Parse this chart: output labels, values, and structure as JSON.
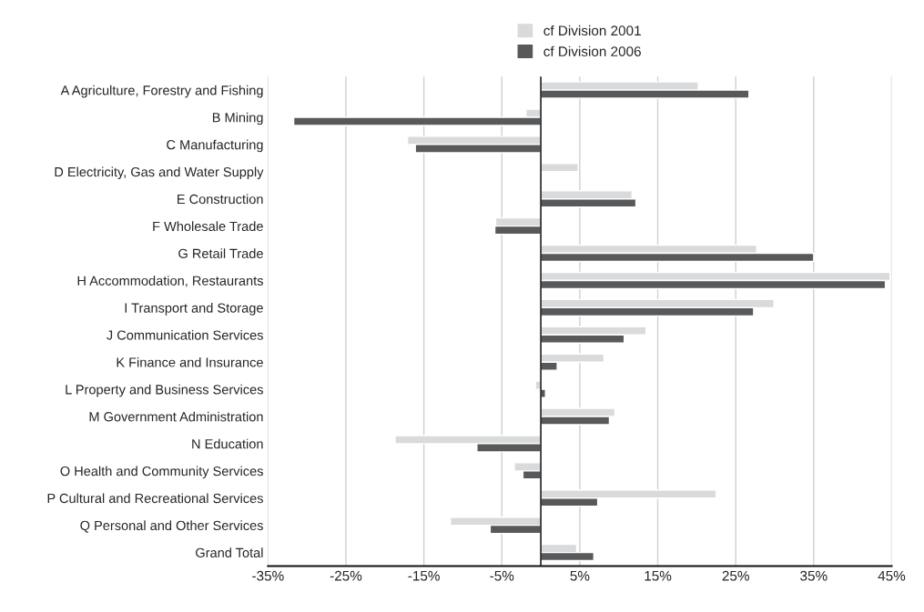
{
  "chart_data": {
    "type": "bar",
    "orientation": "horizontal",
    "categories": [
      "A Agriculture, Forestry and Fishing",
      "B Mining",
      "C Manufacturing",
      "D Electricity, Gas and Water Supply",
      "E Construction",
      "F Wholesale Trade",
      "G Retail Trade",
      "H Accommodation, Restaurants",
      "I Transport and Storage",
      "J Communication Services",
      "K Finance and Insurance",
      "L Property and Business Services",
      "M Government Administration",
      "N Education",
      "O Health and Community Services",
      "P Cultural and Recreational Services",
      "Q Personal and Other Services",
      "Grand Total"
    ],
    "series": [
      {
        "name": "cf Division 2001",
        "color": "#d9dadb",
        "values": [
          20.2,
          -1.9,
          -17.1,
          4.8,
          11.7,
          -5.8,
          27.7,
          44.8,
          29.9,
          13.5,
          8.1,
          -0.7,
          9.5,
          -18.7,
          -3.4,
          22.5,
          -11.6,
          4.6
        ]
      },
      {
        "name": "cf Division 2006",
        "color": "#58595b",
        "values": [
          26.7,
          -31.7,
          -16.1,
          null,
          12.2,
          -5.9,
          35.0,
          44.2,
          27.3,
          10.7,
          2.1,
          0.6,
          8.8,
          -8.2,
          -2.3,
          7.3,
          -6.5,
          6.8
        ]
      }
    ],
    "xlim": [
      -35,
      45
    ],
    "xticks": [
      {
        "value": -35,
        "label": "-35%"
      },
      {
        "value": -25,
        "label": "-25%"
      },
      {
        "value": -15,
        "label": "-15%"
      },
      {
        "value": -5,
        "label": "-5%"
      },
      {
        "value": 5,
        "label": "5%"
      },
      {
        "value": 15,
        "label": "15%"
      },
      {
        "value": 25,
        "label": "25%"
      },
      {
        "value": 35,
        "label": "35%"
      },
      {
        "value": 45,
        "label": "45%"
      }
    ],
    "grid": "x",
    "legend": "top"
  }
}
